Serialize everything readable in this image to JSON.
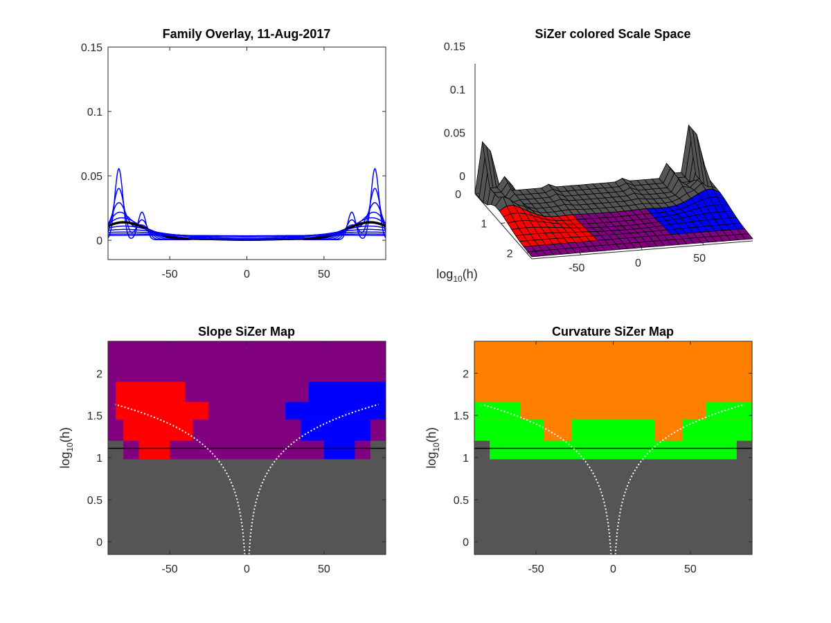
{
  "chart_data": [
    {
      "type": "line",
      "title": "Family Overlay, 11-Aug-2017",
      "xlim": [
        -90,
        90
      ],
      "ylim": [
        -0.015,
        0.15
      ],
      "xticks": [
        -50,
        0,
        50
      ],
      "yticks": [
        0,
        0.05,
        0.1,
        0.15
      ],
      "xtick_labels": [
        "-50",
        "0",
        "50"
      ],
      "ytick_labels": [
        "0",
        "0.05",
        "0.1",
        "0.15"
      ],
      "family_color": "#0000ff",
      "highlight_color": "#000000",
      "bandwidths": [
        2.6,
        3.6,
        5.0,
        7.0,
        9.5,
        13.0,
        17.5,
        24.0,
        33.0,
        45.0,
        62.0
      ],
      "highlight_bandwidth": 13.0,
      "x_range": [
        -90,
        90
      ]
    },
    {
      "type": "surface",
      "title": "SiZer colored Scale Space",
      "zticks": [
        0,
        0.05,
        0.1,
        0.15
      ],
      "ztick_labels": [
        "0",
        "0.05",
        "0.1",
        "0.15"
      ],
      "yticks": [
        0,
        1,
        2
      ],
      "ytick_labels": [
        "0",
        "1",
        "2"
      ],
      "xticks": [
        -50,
        0,
        50
      ],
      "xtick_labels": [
        "-50",
        "0",
        "50"
      ],
      "ylabel_base": "log",
      "ylabel_sub": "10",
      "ylabel_tail": "(h)",
      "colors": {
        "increasing": "#0000ff",
        "decreasing": "#ff0000",
        "insignificant": "#800080",
        "sparse": "#555555"
      }
    },
    {
      "type": "heatmap",
      "title": "Slope SiZer Map",
      "xlim": [
        -90,
        90
      ],
      "ylim": [
        -0.15,
        2.38
      ],
      "xticks": [
        -50,
        0,
        50
      ],
      "xtick_labels": [
        "-50",
        "0",
        "50"
      ],
      "yticks": [
        0,
        0.5,
        1,
        1.5,
        2
      ],
      "ytick_labels": [
        "0",
        "0.5",
        "1",
        "1.5",
        "2"
      ],
      "ylabel_base": "log",
      "ylabel_sub": "10",
      "ylabel_tail": "(h)",
      "background": "#800080",
      "sparse_color": "#555555",
      "highlight_log10h": 1.11,
      "colors": {
        "increasing": "#0000ff",
        "decreasing": "#ff0000",
        "insignificant": "#800080",
        "sparse": "#555555"
      },
      "regions": [
        {
          "color": "#555555",
          "x": [
            -90,
            90
          ],
          "y": [
            -0.15,
            0.98
          ]
        },
        {
          "color": "#555555",
          "x": [
            -90,
            -80
          ],
          "y": [
            0.98,
            1.2
          ]
        },
        {
          "color": "#555555",
          "x": [
            80,
            90
          ],
          "y": [
            0.98,
            1.2
          ]
        },
        {
          "color": "#ff0000",
          "x": [
            -70,
            -50
          ],
          "y": [
            0.98,
            1.2
          ]
        },
        {
          "color": "#ff0000",
          "x": [
            -80,
            -35
          ],
          "y": [
            1.2,
            1.45
          ]
        },
        {
          "color": "#ff0000",
          "x": [
            -85,
            -25
          ],
          "y": [
            1.45,
            1.66
          ]
        },
        {
          "color": "#ff0000",
          "x": [
            -85,
            -40
          ],
          "y": [
            1.66,
            1.9
          ]
        },
        {
          "color": "#0000ff",
          "x": [
            50,
            70
          ],
          "y": [
            0.98,
            1.2
          ]
        },
        {
          "color": "#0000ff",
          "x": [
            35,
            80
          ],
          "y": [
            1.2,
            1.45
          ]
        },
        {
          "color": "#0000ff",
          "x": [
            25,
            90
          ],
          "y": [
            1.45,
            1.66
          ]
        },
        {
          "color": "#0000ff",
          "x": [
            40,
            90
          ],
          "y": [
            1.66,
            1.9
          ]
        }
      ]
    },
    {
      "type": "heatmap",
      "title": "Curvature SiZer Map",
      "xlim": [
        -90,
        90
      ],
      "ylim": [
        -0.15,
        2.38
      ],
      "xticks": [
        -50,
        0,
        50
      ],
      "xtick_labels": [
        "-50",
        "0",
        "50"
      ],
      "yticks": [
        0,
        0.5,
        1,
        1.5,
        2
      ],
      "ytick_labels": [
        "0",
        "0.5",
        "1",
        "1.5",
        "2"
      ],
      "ylabel_base": "log",
      "ylabel_sub": "10",
      "ylabel_tail": "(h)",
      "background": "#ff8000",
      "sparse_color": "#555555",
      "highlight_log10h": 1.11,
      "colors": {
        "convex": "#ff8000",
        "concave": "#00ff00",
        "sparse": "#555555"
      },
      "regions": [
        {
          "color": "#555555",
          "x": [
            -90,
            90
          ],
          "y": [
            -0.15,
            0.98
          ]
        },
        {
          "color": "#555555",
          "x": [
            -90,
            -80
          ],
          "y": [
            0.98,
            1.2
          ]
        },
        {
          "color": "#555555",
          "x": [
            80,
            90
          ],
          "y": [
            0.98,
            1.2
          ]
        },
        {
          "color": "#00ff00",
          "x": [
            -80,
            80
          ],
          "y": [
            0.98,
            1.2
          ]
        },
        {
          "color": "#00ff00",
          "x": [
            -90,
            -45
          ],
          "y": [
            1.2,
            1.45
          ]
        },
        {
          "color": "#00ff00",
          "x": [
            45,
            90
          ],
          "y": [
            1.2,
            1.45
          ]
        },
        {
          "color": "#00ff00",
          "x": [
            -27,
            27
          ],
          "y": [
            1.2,
            1.45
          ]
        },
        {
          "color": "#00ff00",
          "x": [
            -90,
            -60
          ],
          "y": [
            1.45,
            1.66
          ]
        },
        {
          "color": "#00ff00",
          "x": [
            60,
            90
          ],
          "y": [
            1.45,
            1.66
          ]
        }
      ]
    }
  ]
}
